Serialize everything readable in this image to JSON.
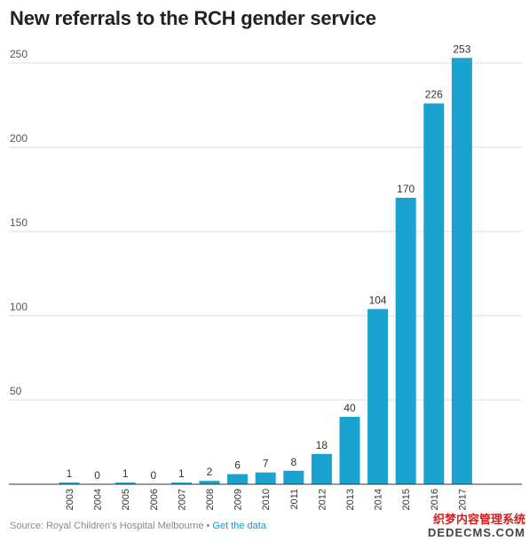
{
  "title": "New referrals to the RCH gender service",
  "footer": {
    "source": "Source: Royal Children's Hospital Melbourne",
    "separator": "•",
    "link": "Get the data"
  },
  "watermark": {
    "line1": "织梦内容管理系统",
    "line2": "DEDECMS.COM"
  },
  "colors": {
    "bar": "#1aa3cf",
    "grid": "#dddddd"
  },
  "chart_data": {
    "type": "bar",
    "title": "New referrals to the RCH gender service",
    "xlabel": "",
    "ylabel": "",
    "ylim": [
      0,
      250
    ],
    "yticks": [
      50,
      100,
      150,
      200,
      250
    ],
    "grid": true,
    "categories": [
      "2003",
      "2004",
      "2005",
      "2006",
      "2007",
      "2008",
      "2009",
      "2010",
      "2011",
      "2012",
      "2013",
      "2014",
      "2015",
      "2016",
      "2017"
    ],
    "values": [
      1,
      0,
      1,
      0,
      1,
      2,
      6,
      7,
      8,
      18,
      40,
      104,
      170,
      226,
      253
    ]
  }
}
